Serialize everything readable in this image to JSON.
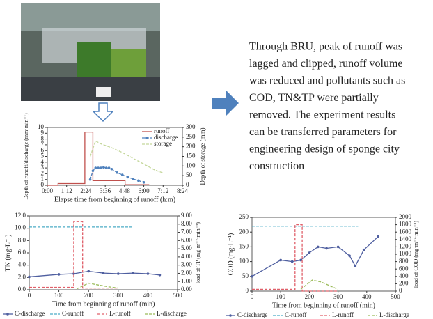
{
  "text_block": {
    "lines": [
      "Through BRU, peak of runoff was",
      "lagged and clipped, runoff volume",
      "was reduced and pollutants such as",
      "COD, TN&TP were partially",
      "removed. The experiment results",
      "can be transferred parameters for",
      "engineering design of sponge city",
      "construction"
    ]
  },
  "chart_data": [
    {
      "type": "line",
      "xlabel": "Elapse time from beginning of runoff (h:m)",
      "ylabel": "Depth of runoff/discharge (mm·min⁻¹)",
      "y2label": "Depth of storage (mm)",
      "xlim": [
        0,
        504
      ],
      "xticks": [
        {
          "value": 0,
          "label": "0:00"
        },
        {
          "value": 72,
          "label": "1:12"
        },
        {
          "value": 144,
          "label": "2:24"
        },
        {
          "value": 216,
          "label": "3:36"
        },
        {
          "value": 288,
          "label": "4:48"
        },
        {
          "value": 360,
          "label": "6:00"
        },
        {
          "value": 432,
          "label": "7:12"
        },
        {
          "value": 504,
          "label": "8:24"
        }
      ],
      "ylim": [
        0,
        10
      ],
      "yticks": [
        0,
        1,
        2,
        3,
        4,
        5,
        6,
        7,
        8,
        9,
        10
      ],
      "y2lim": [
        0,
        300
      ],
      "y2ticks": [
        0,
        50,
        100,
        150,
        200,
        250,
        300
      ],
      "legend": "upper right",
      "series": [
        {
          "name": "runoff",
          "color": "#c0504d",
          "style": "solid",
          "marker": false,
          "x": [
            0,
            40,
            40,
            140,
            140,
            170,
            170,
            290,
            290,
            380
          ],
          "values": [
            0,
            0,
            0.3,
            0.3,
            9.2,
            9.2,
            0.8,
            0.8,
            0.1,
            0.1
          ]
        },
        {
          "name": "discharge",
          "color": "#4f81bd",
          "style": "dashed",
          "marker": true,
          "x": [
            160,
            170,
            180,
            190,
            200,
            210,
            220,
            230,
            240,
            260,
            280,
            300,
            320,
            340,
            360
          ],
          "values": [
            1,
            2.5,
            3,
            3,
            3,
            3.1,
            3,
            3,
            2.8,
            2.2,
            1.8,
            1.4,
            1.1,
            0.8,
            0.5
          ]
        },
        {
          "name": "storage",
          "color": "#c4d79b",
          "style": "dashed",
          "marker": false,
          "axis": "y2",
          "x": [
            160,
            180,
            200,
            240,
            280,
            320,
            360,
            400,
            430
          ],
          "values": [
            150,
            230,
            215,
            195,
            170,
            140,
            110,
            80,
            65
          ]
        }
      ]
    },
    {
      "type": "line",
      "xlabel": "Time from beginning of runoff (min)",
      "ylabel": "TN (mg·L⁻¹)",
      "y2label": "load of TP (mg·m⁻²·min⁻¹)",
      "xlim": [
        0,
        500
      ],
      "xticks": [
        0,
        100,
        200,
        300,
        400,
        500
      ],
      "ylim": [
        0,
        12
      ],
      "yticks": [
        {
          "value": 0,
          "label": "0.0"
        },
        {
          "value": 2,
          "label": "2.0"
        },
        {
          "value": 4,
          "label": "4.0"
        },
        {
          "value": 6,
          "label": "6.0"
        },
        {
          "value": 8,
          "label": "8.0"
        },
        {
          "value": 10,
          "label": "10.0"
        },
        {
          "value": 12,
          "label": "12.0"
        }
      ],
      "y2lim": [
        0,
        9
      ],
      "y2ticks": [
        {
          "value": 0,
          "label": "0.00"
        },
        {
          "value": 1,
          "label": "1.00"
        },
        {
          "value": 2,
          "label": "2.00"
        },
        {
          "value": 3,
          "label": "3.00"
        },
        {
          "value": 4,
          "label": "4.00"
        },
        {
          "value": 5,
          "label": "5.00"
        },
        {
          "value": 6,
          "label": "6.00"
        },
        {
          "value": 7,
          "label": "7.00"
        },
        {
          "value": 8,
          "label": "8.00"
        },
        {
          "value": 9,
          "label": "9.00"
        }
      ],
      "legend": "bottom",
      "series": [
        {
          "name": "C-discharge",
          "color": "#4f5fa0",
          "style": "solid",
          "marker": true,
          "x": [
            0,
            100,
            150,
            200,
            250,
            300,
            350,
            400,
            440
          ],
          "values": [
            2.1,
            2.5,
            2.6,
            3.0,
            2.7,
            2.6,
            2.7,
            2.6,
            2.4
          ]
        },
        {
          "name": "C-runoff",
          "color": "#4bacc6",
          "style": "dashed",
          "marker": false,
          "x": [
            0,
            350
          ],
          "values": [
            10.2,
            10.2
          ]
        },
        {
          "name": "L-runoff",
          "color": "#e0606a",
          "style": "dashed",
          "marker": false,
          "axis": "y2",
          "x": [
            0,
            150,
            150,
            180,
            180,
            300
          ],
          "values": [
            0.3,
            0.3,
            8.3,
            8.3,
            0.2,
            0.2
          ]
        },
        {
          "name": "L-discharge",
          "color": "#9bbb59",
          "style": "dashed",
          "marker": false,
          "axis": "y2",
          "x": [
            160,
            200,
            230,
            260,
            300
          ],
          "values": [
            0.1,
            0.8,
            0.6,
            0.4,
            0.2
          ]
        }
      ]
    },
    {
      "type": "line",
      "xlabel": "Time from beginning of runoff (min)",
      "ylabel": "COD (mg·L⁻¹)",
      "y2label": "load of COD (mg·m⁻²·min⁻¹)",
      "xlim": [
        0,
        500
      ],
      "xticks": [
        0,
        100,
        200,
        300,
        400,
        500
      ],
      "ylim": [
        0,
        250
      ],
      "yticks": [
        0,
        50,
        100,
        150,
        200,
        250
      ],
      "y2lim": [
        0,
        2000
      ],
      "y2ticks": [
        0,
        200,
        400,
        600,
        800,
        1000,
        1200,
        1400,
        1600,
        1800,
        2000
      ],
      "legend": "bottom",
      "series": [
        {
          "name": "C-discharge",
          "color": "#4f5fa0",
          "style": "solid",
          "marker": true,
          "x": [
            0,
            100,
            140,
            170,
            200,
            230,
            260,
            300,
            340,
            360,
            390,
            440
          ],
          "values": [
            50,
            105,
            100,
            105,
            130,
            150,
            145,
            150,
            120,
            85,
            140,
            185
          ]
        },
        {
          "name": "C-runoff",
          "color": "#4bacc6",
          "style": "dashed",
          "marker": false,
          "x": [
            0,
            370
          ],
          "values": [
            220,
            220
          ]
        },
        {
          "name": "L-runoff",
          "color": "#e0606a",
          "style": "dashed",
          "marker": false,
          "axis": "y2",
          "x": [
            0,
            150,
            150,
            175,
            175,
            300
          ],
          "values": [
            50,
            50,
            1800,
            1800,
            0,
            0
          ]
        },
        {
          "name": "L-discharge",
          "color": "#9bbb59",
          "style": "dashed",
          "marker": false,
          "axis": "y2",
          "x": [
            170,
            210,
            240,
            270,
            300
          ],
          "values": [
            50,
            300,
            250,
            150,
            50
          ]
        }
      ]
    }
  ]
}
